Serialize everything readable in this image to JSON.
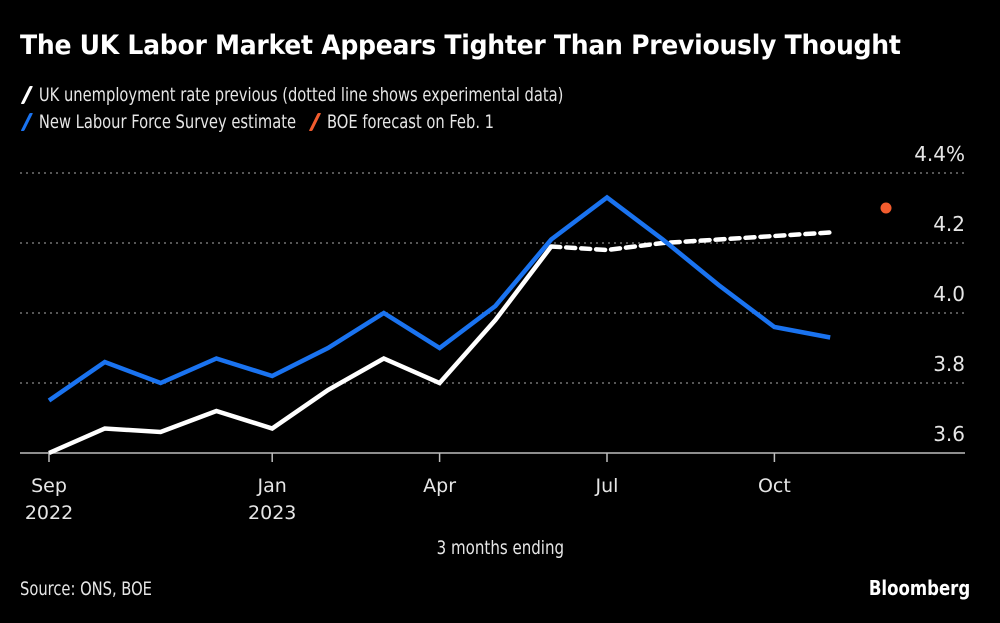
{
  "title": "The UK Labor Market Appears Tighter Than Previously Thought",
  "legend": [
    {
      "label": "UK unemployment rate previous (dotted line shows experimental data)",
      "color": "#ffffff",
      "icon": "slash-swatch"
    },
    {
      "label": "New Labour Force Survey estimate",
      "color": "#1a73f0",
      "icon": "slash-swatch"
    },
    {
      "label": "BOE forecast on Feb. 1",
      "color": "#f25c2e",
      "icon": "slash-swatch"
    }
  ],
  "footer": {
    "source": "Source: ONS, BOE",
    "brand": "Bloomberg",
    "x_axis_title": "3 months ending"
  },
  "chart_data": {
    "type": "line",
    "title": "The UK Labor Market Appears Tighter Than Previously Thought",
    "xlabel": "3 months ending",
    "ylabel": "",
    "ylim": [
      3.6,
      4.4
    ],
    "y_ticks": [
      {
        "value": 3.6,
        "label": "3.6"
      },
      {
        "value": 3.8,
        "label": "3.8"
      },
      {
        "value": 4.0,
        "label": "4.0"
      },
      {
        "value": 4.2,
        "label": "4.2"
      },
      {
        "value": 4.4,
        "label": "4.4%"
      }
    ],
    "y_axis_position": "right",
    "grid": true,
    "x": [
      "2022-09",
      "2022-10",
      "2022-11",
      "2022-12",
      "2023-01",
      "2023-02",
      "2023-03",
      "2023-04",
      "2023-05",
      "2023-06",
      "2023-07",
      "2023-08",
      "2023-09",
      "2023-10",
      "2023-11",
      "2023-12"
    ],
    "x_ticks": [
      {
        "index": 0,
        "label": "Sep",
        "sublabel": "2022"
      },
      {
        "index": 4,
        "label": "Jan",
        "sublabel": "2023"
      },
      {
        "index": 7,
        "label": "Apr",
        "sublabel": ""
      },
      {
        "index": 10,
        "label": "Jul",
        "sublabel": ""
      },
      {
        "index": 13,
        "label": "Oct",
        "sublabel": ""
      }
    ],
    "series": [
      {
        "name": "UK unemployment rate previous",
        "color": "#ffffff",
        "style": "solid",
        "values": [
          3.6,
          3.67,
          3.66,
          3.72,
          3.67,
          3.78,
          3.87,
          3.8,
          3.98,
          4.19,
          null,
          null,
          null,
          null,
          null,
          null
        ]
      },
      {
        "name": "UK unemployment rate previous (experimental)",
        "color": "#ffffff",
        "style": "dotted",
        "values": [
          null,
          null,
          null,
          null,
          null,
          null,
          null,
          null,
          null,
          4.19,
          4.18,
          4.2,
          4.21,
          4.22,
          4.23,
          null
        ]
      },
      {
        "name": "New Labour Force Survey estimate",
        "color": "#1a73f0",
        "style": "solid",
        "values": [
          3.75,
          3.86,
          3.8,
          3.87,
          3.82,
          3.9,
          4.0,
          3.9,
          4.02,
          4.21,
          4.33,
          4.21,
          4.08,
          3.96,
          3.93,
          null
        ]
      },
      {
        "name": "BOE forecast on Feb. 1",
        "color": "#f25c2e",
        "style": "point",
        "values": [
          null,
          null,
          null,
          null,
          null,
          null,
          null,
          null,
          null,
          null,
          null,
          null,
          null,
          null,
          null,
          4.3
        ]
      }
    ]
  }
}
